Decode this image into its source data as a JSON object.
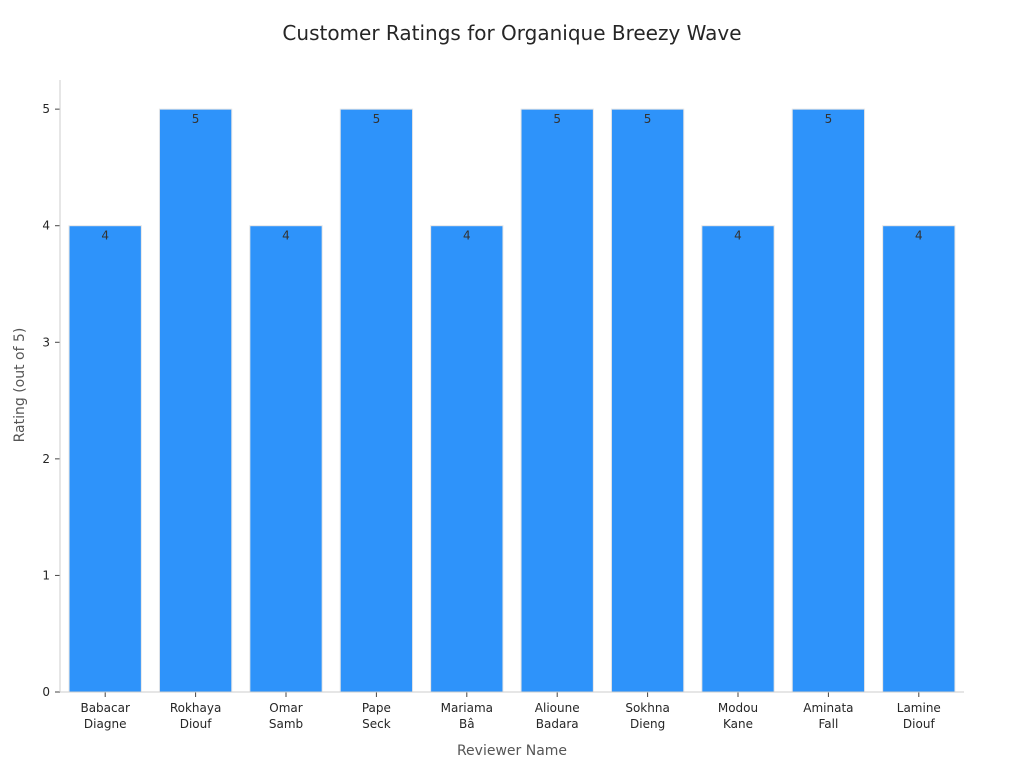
{
  "chart_data": {
    "type": "bar",
    "title": "Customer Ratings for Organique Breezy Wave",
    "xlabel": "Reviewer Name",
    "ylabel": "Rating (out of 5)",
    "categories": [
      [
        "Babacar",
        "Diagne"
      ],
      [
        "Rokhaya",
        "Diouf"
      ],
      [
        "Omar",
        "Samb"
      ],
      [
        "Pape",
        "Seck"
      ],
      [
        "Mariama",
        "Bâ"
      ],
      [
        "Alioune",
        "Badara"
      ],
      [
        "Sokhna",
        "Dieng"
      ],
      [
        "Modou",
        "Kane"
      ],
      [
        "Aminata",
        "Fall"
      ],
      [
        "Lamine",
        "Diouf"
      ]
    ],
    "values": [
      4,
      5,
      4,
      5,
      4,
      5,
      5,
      4,
      5,
      4
    ],
    "data_labels": [
      "4",
      "5",
      "4",
      "5",
      "4",
      "5",
      "5",
      "4",
      "5",
      "4"
    ],
    "yticks": [
      "0",
      "1",
      "2",
      "3",
      "4",
      "5"
    ],
    "ylim": [
      0,
      5.25
    ],
    "grid": false,
    "legend": "none",
    "bar_color": "#2e93fa",
    "bar_edge_color": "#e6e6e6",
    "axis_color": "#cccccc"
  }
}
